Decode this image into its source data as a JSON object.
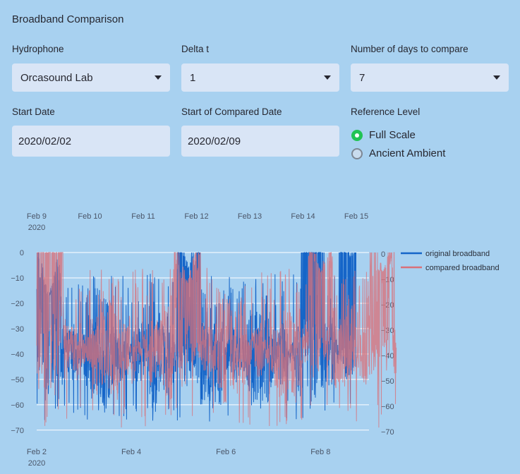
{
  "page": {
    "title": "Broadband Comparison"
  },
  "controls": {
    "hydrophone": {
      "label": "Hydrophone",
      "value": "Orcasound Lab"
    },
    "delta_t": {
      "label": "Delta t",
      "value": "1"
    },
    "num_days": {
      "label": "Number of days to compare",
      "value": "7"
    },
    "start_date": {
      "label": "Start Date",
      "value": "2020/02/02"
    },
    "compared_date": {
      "label": "Start of Compared Date",
      "value": "2020/02/09"
    },
    "reference_level": {
      "label": "Reference Level",
      "options": [
        "Full Scale",
        "Ancient Ambient"
      ],
      "selected": "Full Scale"
    }
  },
  "chart_data": {
    "type": "line",
    "x_top": {
      "ticks": [
        "Feb 9",
        "Feb 10",
        "Feb 11",
        "Feb 12",
        "Feb 13",
        "Feb 14",
        "Feb 15"
      ],
      "year": "2020"
    },
    "x_bottom": {
      "ticks": [
        "Feb 2",
        "Feb 4",
        "Feb 6",
        "Feb 8"
      ],
      "year": "2020"
    },
    "y_left": {
      "ticks": [
        0,
        -10,
        -20,
        -30,
        -40,
        -50,
        -60,
        -70
      ],
      "range": [
        -72,
        0
      ]
    },
    "y_right": {
      "ticks": [
        0,
        -10,
        -20,
        -30,
        -40,
        -50,
        -60,
        -70
      ],
      "range": [
        -72,
        0
      ]
    },
    "grid": true,
    "legend": "top-right",
    "series": [
      {
        "name": "original broadband",
        "color": "#1565c8",
        "x_start": "2020-02-02",
        "x_end": "2020-02-08 18:00",
        "mean": -40,
        "low": -67,
        "high": 0,
        "peaks": [
          {
            "x": "2020-02-02 06:00",
            "y": -17
          },
          {
            "x": "2020-02-05 05:00",
            "y": -6
          },
          {
            "x": "2020-02-07 20:00",
            "y": 0
          },
          {
            "x": "2020-02-08 15:00",
            "y": -2
          }
        ]
      },
      {
        "name": "compared broadband",
        "color": "#d9717a",
        "x_start": "2020-02-09",
        "x_end": "2020-02-15 18:00",
        "mean": -38,
        "low": -69,
        "high": 0,
        "peaks": [
          {
            "x": "2020-02-09 06:00",
            "y": 0
          },
          {
            "x": "2020-02-11 20:00",
            "y": -12
          },
          {
            "x": "2020-02-14 08:00",
            "y": -8
          },
          {
            "x": "2020-02-15 12:00",
            "y": -8
          }
        ]
      }
    ]
  }
}
